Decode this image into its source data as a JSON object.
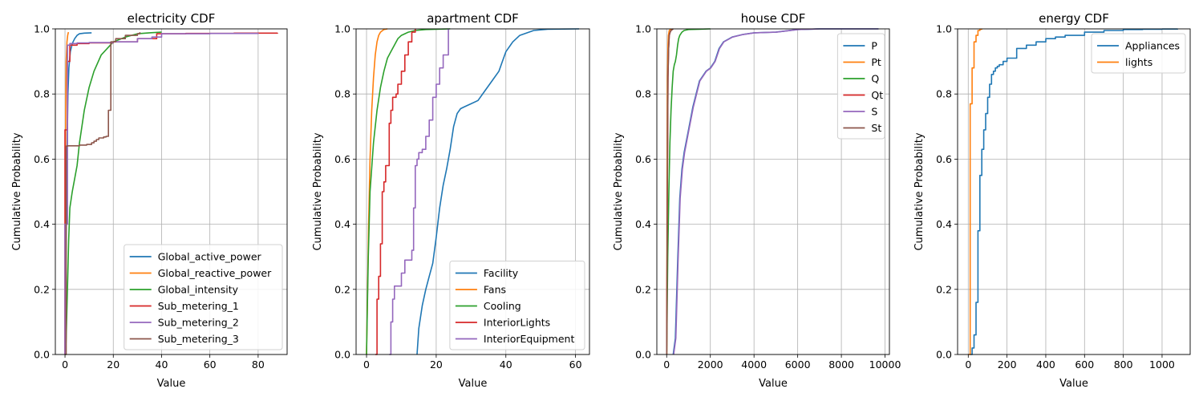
{
  "chart_data": [
    {
      "type": "line",
      "title": "electricity CDF",
      "xlabel": "Value",
      "ylabel": "Cumulative Probability",
      "xlim": [
        -4,
        92
      ],
      "ylim": [
        0,
        1
      ],
      "xticks": [
        0,
        20,
        40,
        60,
        80
      ],
      "yticks": [
        0.0,
        0.2,
        0.4,
        0.6,
        0.8,
        1.0
      ],
      "grid": true,
      "legend": "lower-right",
      "series": [
        {
          "name": "Global_active_power",
          "color": "#1f77b4",
          "step": false,
          "x": [
            0.08,
            0.2,
            0.4,
            0.8,
            1.2,
            1.6,
            2.2,
            3,
            4,
            5,
            6,
            8,
            11
          ],
          "y": [
            0,
            0.1,
            0.3,
            0.6,
            0.8,
            0.88,
            0.93,
            0.955,
            0.97,
            0.98,
            0.985,
            0.987,
            0.988
          ]
        },
        {
          "name": "Global_reactive_power",
          "color": "#ff7f0e",
          "step": false,
          "x": [
            0,
            0.1,
            0.3,
            0.5,
            0.8,
            1.1,
            1.4
          ],
          "y": [
            0,
            0.3,
            0.75,
            0.9,
            0.96,
            0.98,
            0.99
          ]
        },
        {
          "name": "Global_intensity",
          "color": "#2ca02c",
          "step": false,
          "x": [
            0.2,
            0.5,
            1,
            1.5,
            2,
            3,
            4,
            5,
            6,
            8,
            10,
            12,
            15,
            20,
            25,
            30,
            35,
            40
          ],
          "y": [
            0,
            0.05,
            0.2,
            0.35,
            0.45,
            0.5,
            0.54,
            0.58,
            0.65,
            0.75,
            0.82,
            0.87,
            0.92,
            0.96,
            0.975,
            0.985,
            0.988,
            0.99
          ]
        },
        {
          "name": "Sub_metering_1",
          "color": "#d62728",
          "step": true,
          "x": [
            0,
            0,
            1,
            2,
            5,
            10,
            20,
            30,
            38,
            50,
            70,
            88
          ],
          "y": [
            0,
            0.69,
            0.9,
            0.95,
            0.955,
            0.957,
            0.96,
            0.97,
            0.985,
            0.986,
            0.987,
            0.988
          ]
        },
        {
          "name": "Sub_metering_2",
          "color": "#9467bd",
          "step": true,
          "x": [
            0,
            0,
            1,
            2,
            5,
            10,
            20,
            30,
            36,
            40,
            60,
            80
          ],
          "y": [
            0,
            0.4,
            0.95,
            0.955,
            0.957,
            0.958,
            0.96,
            0.97,
            0.975,
            0.985,
            0.986,
            0.987
          ]
        },
        {
          "name": "Sub_metering_3",
          "color": "#8c564b",
          "step": true,
          "x": [
            0,
            0.5,
            1,
            6,
            9,
            11,
            12,
            13,
            14,
            16,
            17,
            18,
            19,
            21,
            25,
            30,
            31
          ],
          "y": [
            0,
            0.64,
            0.641,
            0.643,
            0.645,
            0.65,
            0.655,
            0.66,
            0.665,
            0.668,
            0.67,
            0.75,
            0.96,
            0.97,
            0.98,
            0.985,
            0.99
          ]
        }
      ]
    },
    {
      "type": "line",
      "title": "apartment CDF",
      "xlabel": "Value",
      "ylabel": "Cumulative Probability",
      "xlim": [
        -3,
        64
      ],
      "ylim": [
        0,
        1
      ],
      "xticks": [
        0,
        20,
        40,
        60
      ],
      "yticks": [
        0.0,
        0.2,
        0.4,
        0.6,
        0.8,
        1.0
      ],
      "grid": true,
      "legend": "lower-right",
      "series": [
        {
          "name": "Facility",
          "color": "#1f77b4",
          "step": false,
          "x": [
            14.5,
            15,
            16,
            17,
            18,
            19,
            20,
            21,
            22,
            23,
            24,
            25,
            26,
            27,
            28,
            30,
            32,
            34,
            36,
            38,
            39,
            40,
            42,
            44,
            48,
            52,
            61
          ],
          "y": [
            0,
            0.08,
            0.15,
            0.2,
            0.24,
            0.28,
            0.36,
            0.45,
            0.52,
            0.57,
            0.63,
            0.7,
            0.74,
            0.755,
            0.76,
            0.77,
            0.78,
            0.81,
            0.84,
            0.87,
            0.9,
            0.93,
            0.96,
            0.98,
            0.995,
            0.999,
            1.0
          ]
        },
        {
          "name": "Fans",
          "color": "#ff7f0e",
          "step": false,
          "x": [
            0,
            0.3,
            0.6,
            1,
            1.5,
            2,
            2.5,
            3,
            3.5,
            4,
            5,
            6
          ],
          "y": [
            0,
            0.2,
            0.4,
            0.6,
            0.75,
            0.85,
            0.92,
            0.96,
            0.98,
            0.99,
            0.998,
            1.0
          ]
        },
        {
          "name": "Cooling",
          "color": "#2ca02c",
          "step": false,
          "x": [
            0,
            0.5,
            1,
            2,
            3,
            4,
            5,
            6,
            7,
            8,
            9,
            10,
            11,
            12,
            14,
            17,
            20,
            24
          ],
          "y": [
            0,
            0.3,
            0.5,
            0.65,
            0.75,
            0.82,
            0.87,
            0.91,
            0.93,
            0.95,
            0.97,
            0.98,
            0.985,
            0.99,
            0.995,
            0.998,
            0.999,
            1.0
          ]
        },
        {
          "name": "InteriorLights",
          "color": "#d62728",
          "step": true,
          "x": [
            2.5,
            3,
            3.5,
            4,
            4.5,
            5,
            5.5,
            6,
            6.5,
            7,
            7.5,
            8,
            8.5,
            9,
            10,
            11,
            12,
            13,
            14
          ],
          "y": [
            0,
            0.17,
            0.24,
            0.34,
            0.5,
            0.53,
            0.58,
            0.58,
            0.71,
            0.75,
            0.79,
            0.79,
            0.8,
            0.83,
            0.87,
            0.92,
            0.96,
            0.99,
            1.0
          ]
        },
        {
          "name": "InteriorEquipment",
          "color": "#9467bd",
          "step": true,
          "x": [
            6.5,
            7,
            7.5,
            8,
            9,
            10,
            11,
            12,
            13,
            13.5,
            14,
            14.5,
            15,
            16,
            17,
            18,
            19,
            20,
            21,
            22,
            23,
            23.5
          ],
          "y": [
            0,
            0.1,
            0.17,
            0.21,
            0.21,
            0.25,
            0.29,
            0.29,
            0.32,
            0.45,
            0.58,
            0.6,
            0.62,
            0.63,
            0.67,
            0.72,
            0.79,
            0.83,
            0.88,
            0.92,
            0.92,
            1.0
          ]
        }
      ]
    },
    {
      "type": "line",
      "title": "house CDF",
      "xlabel": "Value",
      "ylabel": "Cumulative Probability",
      "xlim": [
        -450,
        10200
      ],
      "ylim": [
        0,
        1
      ],
      "xticks": [
        0,
        2000,
        4000,
        6000,
        8000,
        10000
      ],
      "yticks": [
        0.0,
        0.2,
        0.4,
        0.6,
        0.8,
        1.0
      ],
      "grid": true,
      "legend": "upper-right",
      "series": [
        {
          "name": "P",
          "color": "#1f77b4",
          "step": false,
          "x": [
            300,
            400,
            500,
            600,
            700,
            800,
            1000,
            1200,
            1500,
            1800,
            2000,
            2200,
            2400,
            2600,
            3000,
            3500,
            4000,
            5000,
            6000,
            7000,
            9700
          ],
          "y": [
            0,
            0.05,
            0.28,
            0.48,
            0.57,
            0.62,
            0.69,
            0.76,
            0.84,
            0.87,
            0.88,
            0.9,
            0.94,
            0.96,
            0.975,
            0.983,
            0.988,
            0.99,
            0.998,
            1.0,
            1.0
          ]
        },
        {
          "name": "Pt",
          "color": "#ff7f0e",
          "step": false,
          "x": [
            0,
            20,
            40,
            60,
            80,
            120,
            200
          ],
          "y": [
            0,
            0.5,
            0.85,
            0.95,
            0.98,
            0.995,
            1.0
          ]
        },
        {
          "name": "Q",
          "color": "#2ca02c",
          "step": false,
          "x": [
            0,
            50,
            100,
            150,
            200,
            250,
            300,
            350,
            400,
            450,
            500,
            550,
            600,
            700,
            800,
            1000,
            1500,
            2000
          ],
          "y": [
            0,
            0.3,
            0.5,
            0.65,
            0.75,
            0.82,
            0.87,
            0.89,
            0.9,
            0.92,
            0.95,
            0.97,
            0.98,
            0.99,
            0.995,
            0.998,
            0.999,
            1.0
          ]
        },
        {
          "name": "Qt",
          "color": "#d62728",
          "step": false,
          "x": [
            0,
            30,
            60,
            90,
            120,
            160,
            200,
            300
          ],
          "y": [
            0,
            0.5,
            0.85,
            0.94,
            0.98,
            0.99,
            0.995,
            1.0
          ]
        },
        {
          "name": "S",
          "color": "#9467bd",
          "step": false,
          "x": [
            320,
            420,
            520,
            620,
            720,
            820,
            1020,
            1220,
            1520,
            1820,
            2020,
            2220,
            2420,
            2620,
            3020,
            3520,
            4020,
            5020,
            6020,
            7020,
            9700
          ],
          "y": [
            0,
            0.05,
            0.28,
            0.48,
            0.57,
            0.62,
            0.69,
            0.76,
            0.84,
            0.87,
            0.88,
            0.9,
            0.94,
            0.96,
            0.975,
            0.983,
            0.988,
            0.99,
            0.998,
            1.0,
            1.0
          ]
        },
        {
          "name": "St",
          "color": "#8c564b",
          "step": false,
          "x": [
            0,
            30,
            60,
            90,
            120,
            160,
            200,
            300
          ],
          "y": [
            0,
            0.5,
            0.85,
            0.94,
            0.98,
            0.99,
            0.995,
            1.0
          ]
        }
      ]
    },
    {
      "type": "line",
      "title": "energy CDF",
      "xlabel": "Value",
      "ylabel": "Cumulative Probability",
      "xlim": [
        -55,
        1145
      ],
      "ylim": [
        0,
        1
      ],
      "xticks": [
        0,
        200,
        400,
        600,
        800,
        1000
      ],
      "yticks": [
        0.0,
        0.2,
        0.4,
        0.6,
        0.8,
        1.0
      ],
      "grid": true,
      "legend": "upper-right",
      "series": [
        {
          "name": "Appliances",
          "color": "#1f77b4",
          "step": true,
          "x": [
            10,
            20,
            30,
            40,
            50,
            60,
            70,
            80,
            90,
            100,
            110,
            120,
            130,
            140,
            150,
            160,
            180,
            200,
            250,
            300,
            350,
            400,
            450,
            500,
            600,
            700,
            800,
            900,
            1000,
            1080
          ],
          "y": [
            0,
            0.02,
            0.06,
            0.16,
            0.38,
            0.55,
            0.63,
            0.69,
            0.74,
            0.79,
            0.83,
            0.86,
            0.87,
            0.88,
            0.885,
            0.89,
            0.9,
            0.91,
            0.94,
            0.95,
            0.96,
            0.97,
            0.975,
            0.98,
            0.99,
            0.995,
            0.998,
            0.999,
            0.9995,
            1.0
          ]
        },
        {
          "name": "lights",
          "color": "#ff7f0e",
          "step": true,
          "x": [
            0,
            10,
            20,
            30,
            40,
            50,
            60,
            70
          ],
          "y": [
            0,
            0.77,
            0.88,
            0.96,
            0.98,
            0.995,
            0.999,
            1.0
          ]
        }
      ]
    }
  ]
}
